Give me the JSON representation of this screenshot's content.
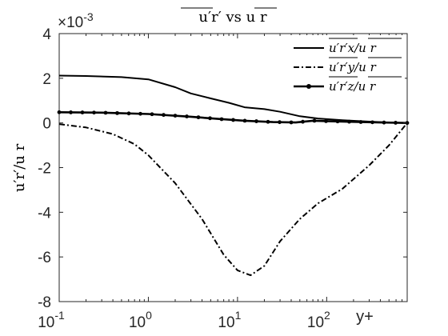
{
  "chart_data": {
    "type": "line",
    "title": "u′r′ vs u r",
    "xlabel": "y+",
    "ylabel": "u′r′/u r",
    "x_scale": "log",
    "xlim": [
      0.1,
      800
    ],
    "ylim": [
      -8,
      4
    ],
    "y_multiplier": "×10-3",
    "x_ticks": [
      0.1,
      1,
      10,
      100
    ],
    "x_tick_labels": [
      {
        "base": "10",
        "exp": "-1"
      },
      {
        "base": "10",
        "exp": "0"
      },
      {
        "base": "10",
        "exp": "1"
      },
      {
        "base": "10",
        "exp": "2"
      }
    ],
    "y_ticks": [
      -8,
      -6,
      -4,
      -2,
      0,
      2,
      4
    ],
    "y_tick_labels": [
      "-8",
      "-6",
      "-4",
      "-2",
      "0",
      "2",
      "4"
    ],
    "grid": false,
    "legend_position": "top-right",
    "series": [
      {
        "name": "u′r′x/u r",
        "style": "solid",
        "color": "#000000",
        "points": [
          [
            0.1,
            2.12
          ],
          [
            0.2,
            2.1
          ],
          [
            0.5,
            2.05
          ],
          [
            1,
            1.95
          ],
          [
            2,
            1.6
          ],
          [
            3,
            1.32
          ],
          [
            5,
            1.1
          ],
          [
            8,
            0.9
          ],
          [
            12,
            0.7
          ],
          [
            20,
            0.62
          ],
          [
            30,
            0.5
          ],
          [
            50,
            0.3
          ],
          [
            80,
            0.2
          ],
          [
            150,
            0.12
          ],
          [
            300,
            0.06
          ],
          [
            500,
            0.02
          ],
          [
            800,
            0.0
          ]
        ]
      },
      {
        "name": "u′r′y/u r",
        "style": "dashdot",
        "color": "#000000",
        "points": [
          [
            0.1,
            -0.05
          ],
          [
            0.2,
            -0.2
          ],
          [
            0.4,
            -0.5
          ],
          [
            0.7,
            -0.95
          ],
          [
            1,
            -1.45
          ],
          [
            2,
            -2.7
          ],
          [
            4,
            -4.3
          ],
          [
            7,
            -5.9
          ],
          [
            10,
            -6.6
          ],
          [
            14,
            -6.82
          ],
          [
            20,
            -6.4
          ],
          [
            30,
            -5.3
          ],
          [
            50,
            -4.3
          ],
          [
            80,
            -3.6
          ],
          [
            150,
            -2.95
          ],
          [
            300,
            -1.9
          ],
          [
            500,
            -1.0
          ],
          [
            800,
            0.0
          ]
        ]
      },
      {
        "name": "u′r′z/u r",
        "style": "solid-marker",
        "color": "#000000",
        "points": [
          [
            0.1,
            0.48
          ],
          [
            0.3,
            0.46
          ],
          [
            1,
            0.4
          ],
          [
            3,
            0.28
          ],
          [
            6,
            0.18
          ],
          [
            12,
            0.1
          ],
          [
            25,
            0.04
          ],
          [
            45,
            0.02
          ],
          [
            70,
            0.1
          ],
          [
            100,
            0.08
          ],
          [
            200,
            0.05
          ],
          [
            400,
            0.02
          ],
          [
            800,
            0.0
          ]
        ]
      }
    ]
  }
}
